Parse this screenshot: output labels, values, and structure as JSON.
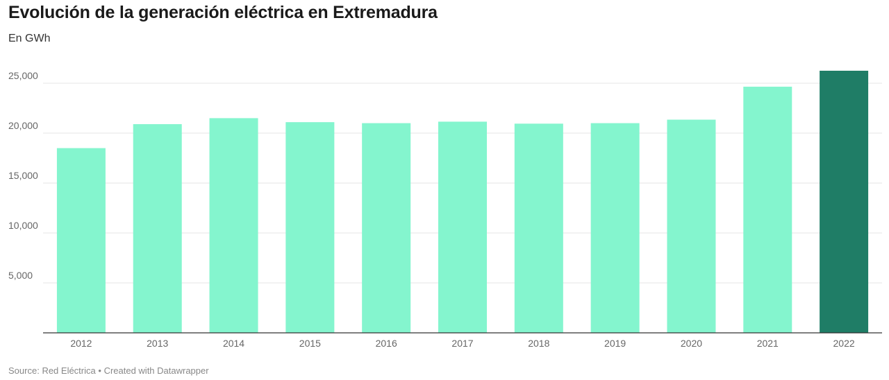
{
  "title": "Evolución de la generación eléctrica en Extremadura",
  "subtitle": "En GWh",
  "footer": {
    "source_label": "Source:",
    "source": "Red Eléctrica",
    "separator": "•",
    "credit": "Created with Datawrapper"
  },
  "colors": {
    "bar": "#84f5ce",
    "bar_highlight": "#1f7d66",
    "grid": "#e6e6e6",
    "axis": "#333333"
  },
  "chart_data": {
    "type": "bar",
    "title": "Evolución de la generación eléctrica en Extremadura",
    "subtitle": "En GWh",
    "xlabel": "",
    "ylabel": "",
    "categories": [
      "2012",
      "2013",
      "2014",
      "2015",
      "2016",
      "2017",
      "2018",
      "2019",
      "2020",
      "2021",
      "2022"
    ],
    "values": [
      18500,
      20900,
      21500,
      21100,
      21000,
      21150,
      20950,
      21000,
      21350,
      24650,
      26250
    ],
    "highlight_category": "2022",
    "ylim": [
      0,
      27500
    ],
    "yticks": [
      5000,
      10000,
      15000,
      20000,
      25000
    ],
    "ytick_labels": [
      "5,000",
      "10,000",
      "15,000",
      "20,000",
      "25,000"
    ],
    "grid": true,
    "legend": "none"
  }
}
